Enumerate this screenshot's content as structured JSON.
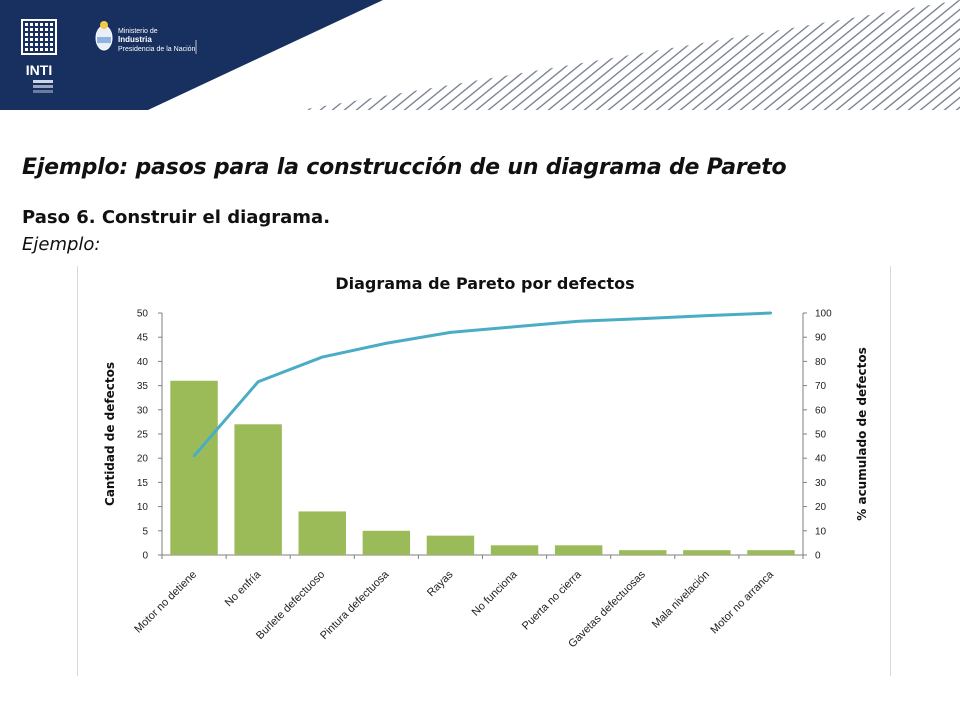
{
  "header": {
    "logo_text": "INTI",
    "ministry_line1": "Ministerio de",
    "ministry_line2": "Industria",
    "ministry_line3": "Presidencia de la Nación",
    "colors": {
      "navy": "#17305f",
      "stripe": "#7d8595"
    }
  },
  "page": {
    "title": "Ejemplo: pasos para la construcción de un diagrama de Pareto",
    "step": "Paso 6. Construir el diagrama.",
    "example": "Ejemplo:"
  },
  "chart_data": {
    "type": "bar",
    "title": "Diagrama de Pareto por defectos",
    "ylabel": "Cantidad de defectos",
    "y2label": "% acumulado de defectos",
    "ylim": [
      0,
      50
    ],
    "y2lim": [
      0,
      100
    ],
    "yticks": [
      "0",
      "5",
      "10",
      "15",
      "20",
      "25",
      "30",
      "35",
      "40",
      "45",
      "50"
    ],
    "y2ticks": [
      "0",
      "10",
      "20",
      "30",
      "40",
      "50",
      "60",
      "70",
      "80",
      "90",
      "100"
    ],
    "categories": [
      "Motor no detiene",
      "No enfría",
      "Burlete defectuoso",
      "Pintura defectuosa",
      "Rayas",
      "No funciona",
      "Puerta no cierra",
      "Gavetas defectuosas",
      "Mala nivelación",
      "Motor no arranca"
    ],
    "series": [
      {
        "type": "bar",
        "axis": "left",
        "color": "#9bbb59",
        "values": [
          36,
          27,
          9,
          5,
          4,
          2,
          2,
          1,
          1,
          1
        ]
      },
      {
        "type": "line",
        "axis": "right",
        "color": "#4bacc6",
        "values": [
          40.9,
          71.6,
          81.8,
          87.5,
          92.0,
          94.3,
          96.6,
          97.7,
          98.9,
          100
        ]
      }
    ],
    "grid": false,
    "legend": "none"
  }
}
